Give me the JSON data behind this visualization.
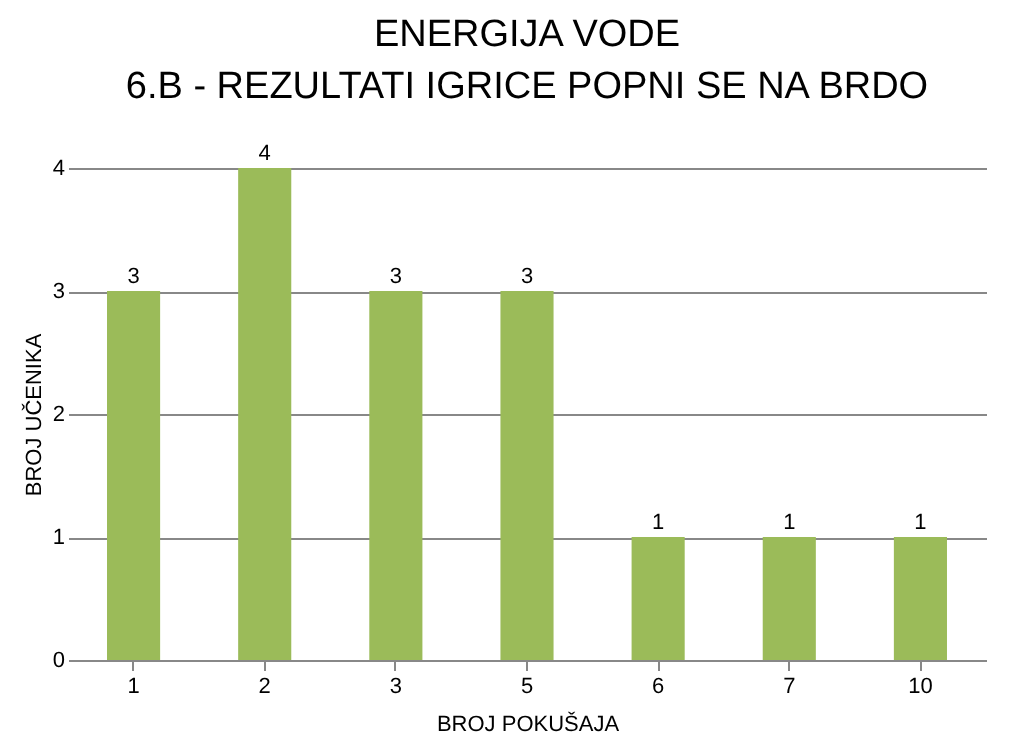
{
  "chart_data": {
    "type": "bar",
    "title": "ENERGIJA VODE\n6.B - REZULTATI IGRICE POPNI SE NA BRDO",
    "xlabel": "BROJ POKUŠAJA",
    "ylabel": "BROJ UČENIKA",
    "categories": [
      "1",
      "2",
      "3",
      "5",
      "6",
      "7",
      "10"
    ],
    "values": [
      3,
      4,
      3,
      3,
      1,
      1,
      1
    ],
    "color": "#9bbb59",
    "ylim": [
      0,
      4
    ],
    "yticks": [
      0,
      1,
      2,
      3,
      4
    ],
    "grid": "y",
    "data_labels": true
  }
}
